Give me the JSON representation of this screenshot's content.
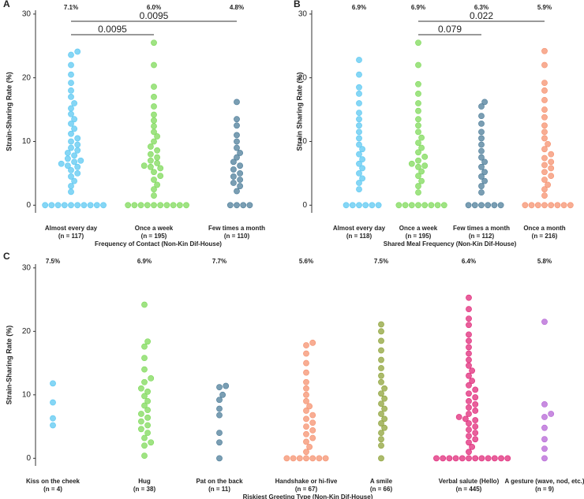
{
  "chart_data": [
    {
      "type": "beeswarm",
      "panel": "A",
      "y_label": "Strain-Sharing Rate (%)",
      "x_label": "Frequency of Contact (Non-Kin Dif-House)",
      "categories": [
        "Almost every day",
        "Once a week",
        "Few times a month"
      ],
      "n_labels": [
        "(n = 117)",
        "(n = 195)",
        "(n = 110)"
      ],
      "rates": [
        7.1,
        6.0,
        4.8
      ],
      "rate_labels": [
        "7.1%",
        "6.0%",
        "4.8%"
      ],
      "colors": [
        "#5cc8f2",
        "#7fda5a",
        "#4d7d99"
      ],
      "comparisons": [
        {
          "from": 0,
          "to": 1,
          "p": 0.0095
        },
        {
          "from": 0,
          "to": 2,
          "p": 0.0095
        }
      ],
      "points": [
        [
          0,
          0,
          0,
          0,
          0,
          0,
          0,
          0,
          0,
          0,
          2.1,
          3.0,
          3.8,
          4.5,
          5.0,
          5.5,
          6.0,
          6.2,
          6.5,
          6.8,
          7.0,
          7.3,
          7.8,
          8.2,
          8.6,
          9.0,
          9.5,
          10.0,
          10.5,
          11.2,
          12.0,
          12.8,
          13.5,
          14.3,
          15.2,
          16.0,
          17.0,
          18.0,
          19.2,
          20.5,
          22.0,
          23.6,
          24.1
        ],
        [
          0,
          0,
          0,
          0,
          0,
          0,
          0,
          0,
          0,
          0,
          1.5,
          2.5,
          3.2,
          4.0,
          4.6,
          5.2,
          5.8,
          6.0,
          6.2,
          6.6,
          7.0,
          7.5,
          8.0,
          8.6,
          9.2,
          10.0,
          10.8,
          11.5,
          12.4,
          13.3,
          14.2,
          15.5,
          17.0,
          18.6,
          22.0,
          25.5
        ],
        [
          0,
          0,
          0,
          0,
          2.2,
          3.0,
          3.5,
          4.0,
          4.5,
          5.0,
          5.6,
          6.2,
          6.8,
          7.5,
          8.2,
          9.0,
          10.0,
          11.0,
          12.5,
          13.5,
          16.2
        ]
      ]
    },
    {
      "type": "beeswarm",
      "panel": "B",
      "y_label": "Strain Sharing Rate (%)",
      "x_label": "Shared Meal Frequency (Non-Kin Dif-House)",
      "categories": [
        "Almost every day",
        "Once a week",
        "Few times a month",
        "Once a month"
      ],
      "n_labels": [
        "(n = 118)",
        "(n = 195)",
        "(n = 112)",
        "(n = 216)"
      ],
      "rates": [
        6.9,
        6.9,
        6.3,
        5.9
      ],
      "rate_labels": [
        "6.9%",
        "6.9%",
        "6.3%",
        "5.9%"
      ],
      "colors": [
        "#5cc8f2",
        "#7fda5a",
        "#4d7d99",
        "#f5916f"
      ],
      "comparisons": [
        {
          "from": 1,
          "to": 2,
          "p": 0.079
        },
        {
          "from": 1,
          "to": 3,
          "p": 0.022
        }
      ],
      "points": [
        [
          0,
          0,
          0,
          0,
          0,
          0,
          2.5,
          3.5,
          4.2,
          5.0,
          5.8,
          6.5,
          7.2,
          8.0,
          8.8,
          9.5,
          10.5,
          11.5,
          12.5,
          13.5,
          14.5,
          16.0,
          17.5,
          18.5,
          20.5,
          22.8
        ],
        [
          0,
          0,
          0,
          0,
          0,
          0,
          0,
          0,
          2.0,
          3.0,
          3.8,
          4.6,
          5.3,
          6.0,
          6.2,
          6.5,
          7.0,
          7.6,
          8.3,
          9.0,
          9.8,
          10.6,
          11.5,
          12.5,
          13.5,
          14.8,
          16.0,
          17.5,
          19.0,
          22.0,
          25.5
        ],
        [
          0,
          0,
          0,
          0,
          0,
          0,
          2.0,
          3.0,
          3.8,
          4.5,
          5.2,
          6.0,
          6.8,
          7.5,
          8.5,
          9.5,
          10.5,
          11.5,
          12.8,
          14.0,
          15.5,
          16.2
        ],
        [
          0,
          0,
          0,
          0,
          0,
          0,
          0,
          0,
          1.5,
          2.5,
          3.2,
          4.0,
          4.6,
          5.2,
          5.8,
          6.3,
          6.8,
          7.4,
          8.0,
          8.8,
          9.6,
          10.5,
          11.5,
          12.5,
          13.8,
          15.0,
          16.5,
          18.0,
          19.2,
          22.0,
          24.2
        ]
      ]
    },
    {
      "type": "beeswarm",
      "panel": "C",
      "y_label": "Strain-Sharing Rate (%)",
      "x_label": "Riskiest Greeting Type (Non-Kin Dif-House)",
      "categories": [
        "Kiss on the cheek",
        "Hug",
        "Pat on the back",
        "Handshake or hi-five",
        "A smile",
        "Verbal salute (Hello)",
        "A gesture (wave, nod, etc.)"
      ],
      "n_labels": [
        "(n = 4)",
        "(n = 38)",
        "(n = 11)",
        "(n = 67)",
        "(n = 66)",
        "(n = 445)",
        "(n = 9)"
      ],
      "rates": [
        7.5,
        6.9,
        7.7,
        5.6,
        7.5,
        6.4,
        5.8
      ],
      "rate_labels": [
        "7.5%",
        "6.9%",
        "7.7%",
        "5.6%",
        "7.5%",
        "6.4%",
        "5.8%"
      ],
      "colors": [
        "#5cc8f2",
        "#7fda5a",
        "#4d7d99",
        "#f5916f",
        "#8fa33a",
        "#e0297a",
        "#b565d6"
      ],
      "points": [
        [
          5.2,
          6.3,
          8.8,
          11.8
        ],
        [
          0.4,
          2.0,
          2.5,
          3.2,
          4.0,
          4.6,
          5.2,
          5.8,
          6.4,
          7.0,
          7.6,
          8.3,
          9.0,
          9.8,
          10.5,
          11.0,
          12.0,
          12.6,
          14.0,
          15.8,
          17.6,
          18.4,
          24.2
        ],
        [
          0,
          2.5,
          4.0,
          6.8,
          7.8,
          9.2,
          10.0,
          11.2,
          11.4
        ],
        [
          0,
          0,
          0,
          0,
          0,
          0,
          0,
          1.0,
          1.8,
          2.6,
          3.2,
          3.8,
          4.4,
          5.0,
          5.6,
          6.2,
          6.8,
          7.5,
          8.2,
          9.0,
          10.0,
          11.0,
          12.0,
          13.5,
          15.0,
          16.5,
          17.8,
          18.2
        ],
        [
          0,
          2.0,
          3.0,
          4.0,
          4.8,
          5.5,
          6.2,
          7.0,
          7.8,
          8.6,
          9.4,
          10.2,
          11.0,
          12.0,
          13.0,
          14.2,
          15.5,
          17.0,
          18.5,
          20.0,
          21.1
        ],
        [
          0,
          0,
          0,
          0,
          0,
          0,
          0,
          0,
          0,
          0,
          0,
          0,
          1.0,
          1.8,
          2.5,
          3.0,
          3.5,
          4.0,
          4.5,
          5.0,
          5.5,
          6.0,
          6.2,
          6.5,
          7.0,
          7.5,
          8.0,
          8.5,
          9.0,
          9.6,
          10.2,
          10.8,
          11.5,
          12.2,
          13.0,
          13.8,
          14.6,
          15.5,
          16.5,
          17.5,
          18.5,
          19.5,
          21.0,
          22.0,
          23.5,
          25.3
        ],
        [
          0,
          1.5,
          3.0,
          4.8,
          6.5,
          7.0,
          8.5,
          21.5
        ]
      ]
    }
  ],
  "y_ticks": [
    0,
    10,
    20,
    30
  ],
  "ylim": [
    -1.2,
    30.6
  ]
}
